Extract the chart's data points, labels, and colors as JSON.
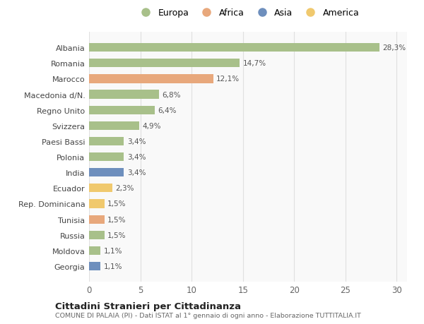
{
  "countries": [
    "Albania",
    "Romania",
    "Marocco",
    "Macedonia d/N.",
    "Regno Unito",
    "Svizzera",
    "Paesi Bassi",
    "Polonia",
    "India",
    "Ecuador",
    "Rep. Dominicana",
    "Tunisia",
    "Russia",
    "Moldova",
    "Georgia"
  ],
  "values": [
    28.3,
    14.7,
    12.1,
    6.8,
    6.4,
    4.9,
    3.4,
    3.4,
    3.4,
    2.3,
    1.5,
    1.5,
    1.5,
    1.1,
    1.1
  ],
  "labels": [
    "28,3%",
    "14,7%",
    "12,1%",
    "6,8%",
    "6,4%",
    "4,9%",
    "3,4%",
    "3,4%",
    "3,4%",
    "2,3%",
    "1,5%",
    "1,5%",
    "1,5%",
    "1,1%",
    "1,1%"
  ],
  "categories": [
    "Europa",
    "Africa",
    "Asia",
    "America"
  ],
  "continent": [
    "Europa",
    "Europa",
    "Africa",
    "Europa",
    "Europa",
    "Europa",
    "Europa",
    "Europa",
    "Asia",
    "America",
    "America",
    "Africa",
    "Europa",
    "Europa",
    "Asia"
  ],
  "colors": {
    "Europa": "#a8c08a",
    "Africa": "#e8a87c",
    "Asia": "#6e8fbd",
    "America": "#f0c96e"
  },
  "bg_color": "#ffffff",
  "plot_bg_color": "#f9f9f9",
  "grid_color": "#e0e0e0",
  "title1": "Cittadini Stranieri per Cittadinanza",
  "title2": "COMUNE DI PALAIA (PI) - Dati ISTAT al 1° gennaio di ogni anno - Elaborazione TUTTITALIA.IT",
  "xlim": [
    0,
    31
  ],
  "xticks": [
    0,
    5,
    10,
    15,
    20,
    25,
    30
  ]
}
